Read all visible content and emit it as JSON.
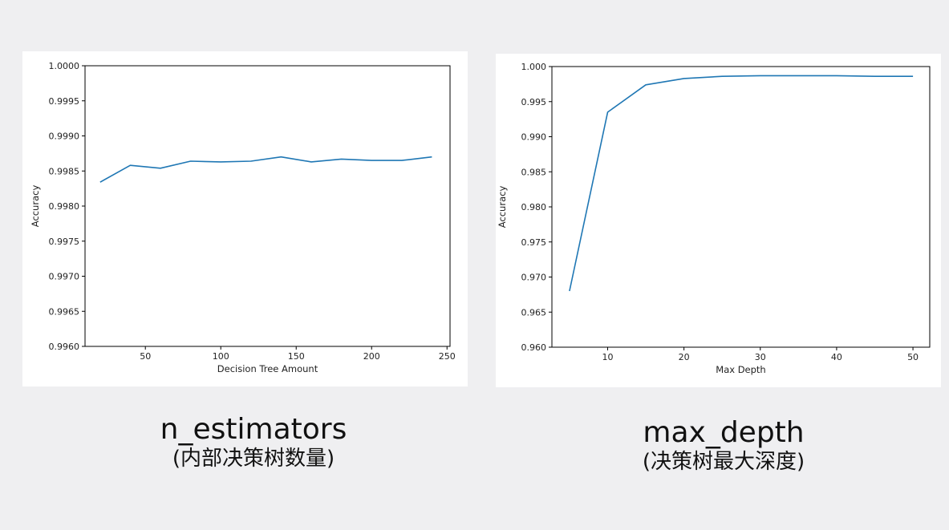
{
  "chart_data": [
    {
      "type": "line",
      "xlabel": "Decision Tree Amount",
      "ylabel": "Accuracy",
      "xlim": [
        10,
        252
      ],
      "ylim": [
        0.996,
        1.0
      ],
      "xticks": [
        50,
        100,
        150,
        200,
        250
      ],
      "xtick_labels": [
        "50",
        "100",
        "150",
        "200",
        "250"
      ],
      "yticks": [
        0.996,
        0.9965,
        0.997,
        0.9975,
        0.998,
        0.9985,
        0.999,
        0.9995,
        1.0
      ],
      "ytick_labels": [
        "0.9960",
        "0.9965",
        "0.9970",
        "0.9975",
        "0.9980",
        "0.9985",
        "0.9990",
        "0.9995",
        "1.0000"
      ],
      "grid": false,
      "color": "#1f77b4",
      "series": [
        {
          "x": [
            20,
            40,
            60,
            80,
            100,
            120,
            140,
            160,
            180,
            200,
            220,
            240
          ],
          "values": [
            0.99834,
            0.99858,
            0.99854,
            0.99864,
            0.99863,
            0.99864,
            0.9987,
            0.99863,
            0.99867,
            0.99865,
            0.99865,
            0.9987
          ]
        }
      ]
    },
    {
      "type": "line",
      "xlabel": "Max Depth",
      "ylabel": "Accuracy",
      "xlim": [
        2.7,
        52.2
      ],
      "ylim": [
        0.96,
        1.0
      ],
      "xticks": [
        10,
        20,
        30,
        40,
        50
      ],
      "xtick_labels": [
        "10",
        "20",
        "30",
        "40",
        "50"
      ],
      "yticks": [
        0.96,
        0.965,
        0.97,
        0.975,
        0.98,
        0.985,
        0.99,
        0.995,
        1.0
      ],
      "ytick_labels": [
        "0.960",
        "0.965",
        "0.970",
        "0.975",
        "0.980",
        "0.985",
        "0.990",
        "0.995",
        "1.000"
      ],
      "grid": false,
      "color": "#1f77b4",
      "series": [
        {
          "x": [
            5,
            10,
            15,
            20,
            25,
            30,
            35,
            40,
            45,
            50
          ],
          "values": [
            0.968,
            0.9935,
            0.9974,
            0.9983,
            0.9986,
            0.9987,
            0.9987,
            0.9987,
            0.9986,
            0.9986
          ]
        }
      ]
    }
  ],
  "captions": {
    "left": {
      "main": "n_estimators",
      "sub": "(内部决策树数量)"
    },
    "right": {
      "main": "max_depth",
      "sub": "(决策树最大深度)"
    }
  }
}
